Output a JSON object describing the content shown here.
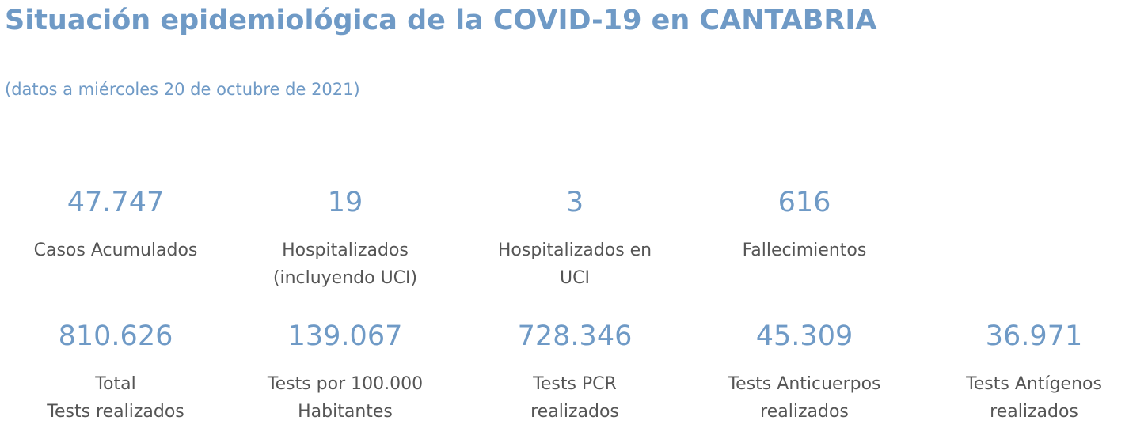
{
  "header": {
    "title": "Situación epidemiológica de la COVID-19 en CANTABRIA",
    "subtitle": "(datos a miércoles 20 de octubre de 2021)"
  },
  "stats_row_1": [
    {
      "value": "47.747",
      "label": "Casos Acumulados"
    },
    {
      "value": "19",
      "label": "Hospitalizados\n(incluyendo UCI)"
    },
    {
      "value": "3",
      "label": "Hospitalizados en\nUCI"
    },
    {
      "value": "616",
      "label": "Fallecimientos"
    }
  ],
  "stats_row_2": [
    {
      "value": "810.626",
      "label": "Total\nTests realizados"
    },
    {
      "value": "139.067",
      "label": "Tests por 100.000\nHabitantes"
    },
    {
      "value": "728.346",
      "label": "Tests PCR\nrealizados"
    },
    {
      "value": "45.309",
      "label": "Tests Anticuerpos\nrealizados"
    },
    {
      "value": "36.971",
      "label": "Tests Antígenos\nrealizados"
    }
  ],
  "colors": {
    "accent": "#6f9ac6",
    "label_text": "#555555",
    "background": "#ffffff"
  }
}
